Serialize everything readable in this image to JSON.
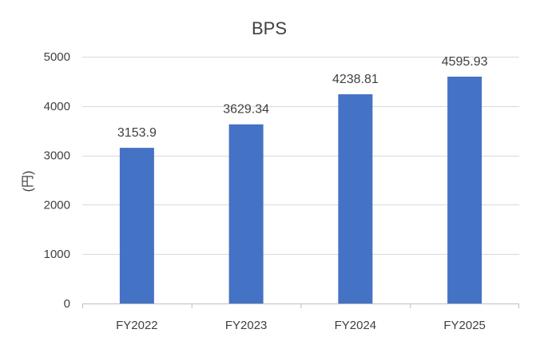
{
  "chart_data": {
    "type": "bar",
    "title": "BPS",
    "ylabel": "(円)",
    "xlabel": "",
    "categories": [
      "FY2022",
      "FY2023",
      "FY2024",
      "FY2025"
    ],
    "series": [
      {
        "values": [
          3153.9,
          3629.34,
          4238.81,
          4595.93
        ],
        "labels": [
          "3153.9",
          "3629.34",
          "4238.81",
          "4595.93"
        ],
        "color": "#4472c4"
      }
    ],
    "ylim": [
      0,
      5000
    ],
    "yticks": [
      "0",
      "1000",
      "2000",
      "3000",
      "4000",
      "5000"
    ],
    "grid": true,
    "legend": "none"
  }
}
